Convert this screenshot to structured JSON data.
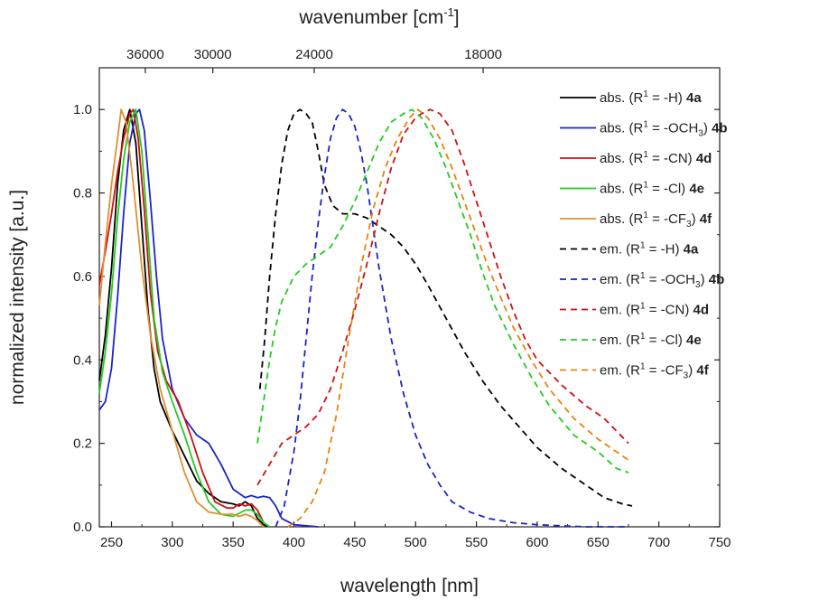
{
  "chart_data": {
    "type": "line",
    "xlabel": "wavelength [nm]",
    "ylabel": "normalized intensity [a.u.]",
    "top_xlabel": "wavenumber [cm",
    "top_xlabel_sup": "-1",
    "top_xlabel_end": "]",
    "xlim": [
      240,
      750
    ],
    "ylim": [
      0,
      1.1
    ],
    "x_ticks": [
      250,
      300,
      350,
      400,
      450,
      500,
      550,
      600,
      650,
      700,
      750
    ],
    "y_ticks": [
      "0.0",
      "0.2",
      "0.4",
      "0.6",
      "0.8",
      "1.0"
    ],
    "top_ticks": [
      {
        "label": "36000",
        "wavenumber": 36000
      },
      {
        "label": "30000",
        "wavenumber": 30000
      },
      {
        "label": "24000",
        "wavenumber": 24000
      },
      {
        "label": "18000",
        "wavenumber": 18000
      }
    ],
    "legend_position": "top-right",
    "series": [
      {
        "name": "abs. (R1 = -H) 4a",
        "legend": {
          "pre": "abs. (R",
          "sup": "1",
          "mid": " = -H)",
          "sub": "",
          "post": " ",
          "bold": "4a"
        },
        "color": "#000000",
        "dash": "solid",
        "points": [
          [
            240,
            0.35
          ],
          [
            245,
            0.46
          ],
          [
            250,
            0.62
          ],
          [
            255,
            0.82
          ],
          [
            260,
            0.95
          ],
          [
            265,
            1.0
          ],
          [
            270,
            0.92
          ],
          [
            275,
            0.72
          ],
          [
            280,
            0.52
          ],
          [
            285,
            0.38
          ],
          [
            290,
            0.3
          ],
          [
            300,
            0.23
          ],
          [
            310,
            0.17
          ],
          [
            320,
            0.11
          ],
          [
            330,
            0.08
          ],
          [
            340,
            0.06
          ],
          [
            350,
            0.055
          ],
          [
            355,
            0.05
          ],
          [
            360,
            0.06
          ],
          [
            365,
            0.05
          ],
          [
            370,
            0.02
          ],
          [
            375,
            0.005
          ],
          [
            380,
            0.0
          ]
        ]
      },
      {
        "name": "abs. (R1 = -OCH3) 4b",
        "legend": {
          "pre": "abs. (R",
          "sup": "1",
          "mid": " = -OCH",
          "sub": "3",
          "post": ") ",
          "bold": "4b"
        },
        "color": "#1a24c8",
        "dash": "solid",
        "points": [
          [
            240,
            0.28
          ],
          [
            245,
            0.3
          ],
          [
            250,
            0.38
          ],
          [
            255,
            0.55
          ],
          [
            260,
            0.75
          ],
          [
            265,
            0.92
          ],
          [
            270,
            0.99
          ],
          [
            273,
            1.0
          ],
          [
            277,
            0.95
          ],
          [
            282,
            0.78
          ],
          [
            287,
            0.6
          ],
          [
            292,
            0.45
          ],
          [
            300,
            0.33
          ],
          [
            310,
            0.26
          ],
          [
            320,
            0.22
          ],
          [
            330,
            0.2
          ],
          [
            340,
            0.15
          ],
          [
            350,
            0.09
          ],
          [
            360,
            0.07
          ],
          [
            365,
            0.075
          ],
          [
            370,
            0.07
          ],
          [
            375,
            0.073
          ],
          [
            380,
            0.07
          ],
          [
            385,
            0.05
          ],
          [
            390,
            0.02
          ],
          [
            400,
            0.005
          ],
          [
            420,
            0.0
          ]
        ]
      },
      {
        "name": "abs. (R1 = -CN) 4d",
        "legend": {
          "pre": "abs. (R",
          "sup": "1",
          "mid": " = -CN)",
          "sub": "",
          "post": " ",
          "bold": "4d"
        },
        "color": "#d01010",
        "dash": "solid",
        "points": [
          [
            240,
            0.58
          ],
          [
            245,
            0.66
          ],
          [
            250,
            0.75
          ],
          [
            255,
            0.85
          ],
          [
            260,
            0.93
          ],
          [
            265,
            0.99
          ],
          [
            268,
            1.0
          ],
          [
            272,
            0.93
          ],
          [
            277,
            0.76
          ],
          [
            282,
            0.56
          ],
          [
            288,
            0.42
          ],
          [
            295,
            0.35
          ],
          [
            305,
            0.3
          ],
          [
            315,
            0.22
          ],
          [
            325,
            0.13
          ],
          [
            335,
            0.06
          ],
          [
            345,
            0.045
          ],
          [
            350,
            0.045
          ],
          [
            355,
            0.055
          ],
          [
            360,
            0.05
          ],
          [
            365,
            0.055
          ],
          [
            370,
            0.04
          ],
          [
            375,
            0.01
          ],
          [
            380,
            0.0
          ]
        ]
      },
      {
        "name": "abs. (R1 = -Cl) 4e",
        "legend": {
          "pre": "abs. (R",
          "sup": "1",
          "mid": " = -Cl)",
          "sub": "",
          "post": " ",
          "bold": "4e"
        },
        "color": "#22cc22",
        "dash": "solid",
        "points": [
          [
            240,
            0.32
          ],
          [
            245,
            0.42
          ],
          [
            250,
            0.56
          ],
          [
            255,
            0.74
          ],
          [
            260,
            0.88
          ],
          [
            265,
            0.97
          ],
          [
            270,
            1.0
          ],
          [
            275,
            0.9
          ],
          [
            280,
            0.7
          ],
          [
            285,
            0.5
          ],
          [
            292,
            0.37
          ],
          [
            300,
            0.3
          ],
          [
            310,
            0.22
          ],
          [
            320,
            0.13
          ],
          [
            330,
            0.06
          ],
          [
            340,
            0.03
          ],
          [
            350,
            0.025
          ],
          [
            360,
            0.04
          ],
          [
            365,
            0.04
          ],
          [
            370,
            0.03
          ],
          [
            375,
            0.01
          ],
          [
            380,
            0.0
          ]
        ]
      },
      {
        "name": "abs. (R1 = -CF3) 4f",
        "legend": {
          "pre": "abs. (R",
          "sup": "1",
          "mid": " = -CF",
          "sub": "3",
          "post": ") ",
          "bold": "4f"
        },
        "color": "#e09030",
        "dash": "solid",
        "points": [
          [
            240,
            0.53
          ],
          [
            245,
            0.68
          ],
          [
            250,
            0.82
          ],
          [
            255,
            0.93
          ],
          [
            258,
            1.0
          ],
          [
            262,
            0.97
          ],
          [
            268,
            0.82
          ],
          [
            275,
            0.62
          ],
          [
            282,
            0.46
          ],
          [
            290,
            0.33
          ],
          [
            300,
            0.23
          ],
          [
            310,
            0.13
          ],
          [
            320,
            0.06
          ],
          [
            330,
            0.035
          ],
          [
            340,
            0.03
          ],
          [
            350,
            0.03
          ],
          [
            355,
            0.025
          ],
          [
            360,
            0.03
          ],
          [
            365,
            0.025
          ],
          [
            370,
            0.015
          ],
          [
            375,
            0.0
          ]
        ]
      },
      {
        "name": "em. (R1 = -H) 4a",
        "legend": {
          "pre": "em. (R",
          "sup": "1",
          "mid": " = -H)",
          "sub": "",
          "post": " ",
          "bold": "4a"
        },
        "color": "#000000",
        "dash": "dashed",
        "points": [
          [
            372,
            0.33
          ],
          [
            376,
            0.45
          ],
          [
            380,
            0.6
          ],
          [
            385,
            0.75
          ],
          [
            390,
            0.87
          ],
          [
            395,
            0.95
          ],
          [
            400,
            0.99
          ],
          [
            405,
            1.0
          ],
          [
            410,
            0.99
          ],
          [
            415,
            0.97
          ],
          [
            420,
            0.9
          ],
          [
            425,
            0.82
          ],
          [
            432,
            0.77
          ],
          [
            440,
            0.75
          ],
          [
            450,
            0.75
          ],
          [
            460,
            0.74
          ],
          [
            470,
            0.72
          ],
          [
            480,
            0.7
          ],
          [
            490,
            0.67
          ],
          [
            500,
            0.63
          ],
          [
            510,
            0.58
          ],
          [
            525,
            0.5
          ],
          [
            540,
            0.42
          ],
          [
            555,
            0.35
          ],
          [
            570,
            0.29
          ],
          [
            585,
            0.24
          ],
          [
            600,
            0.19
          ],
          [
            620,
            0.14
          ],
          [
            640,
            0.1
          ],
          [
            655,
            0.07
          ],
          [
            670,
            0.055
          ],
          [
            678,
            0.05
          ]
        ]
      },
      {
        "name": "em. (R1 = -OCH3) 4b",
        "legend": {
          "pre": "em. (R",
          "sup": "1",
          "mid": " = -OCH",
          "sub": "3",
          "post": ") ",
          "bold": "4b"
        },
        "color": "#1a24c8",
        "dash": "dashed",
        "points": [
          [
            385,
            0.0
          ],
          [
            392,
            0.05
          ],
          [
            400,
            0.18
          ],
          [
            405,
            0.3
          ],
          [
            410,
            0.45
          ],
          [
            415,
            0.6
          ],
          [
            420,
            0.73
          ],
          [
            425,
            0.84
          ],
          [
            430,
            0.93
          ],
          [
            435,
            0.98
          ],
          [
            440,
            1.0
          ],
          [
            445,
            0.99
          ],
          [
            450,
            0.96
          ],
          [
            455,
            0.9
          ],
          [
            460,
            0.82
          ],
          [
            465,
            0.72
          ],
          [
            470,
            0.62
          ],
          [
            480,
            0.45
          ],
          [
            490,
            0.32
          ],
          [
            500,
            0.22
          ],
          [
            510,
            0.15
          ],
          [
            520,
            0.1
          ],
          [
            530,
            0.06
          ],
          [
            545,
            0.035
          ],
          [
            560,
            0.02
          ],
          [
            580,
            0.01
          ],
          [
            600,
            0.005
          ],
          [
            640,
            0.0
          ],
          [
            675,
            0.0
          ]
        ]
      },
      {
        "name": "em. (R1 = -CN) 4d",
        "legend": {
          "pre": "em. (R",
          "sup": "1",
          "mid": " = -CN)",
          "sub": "",
          "post": " ",
          "bold": "4d"
        },
        "color": "#d01010",
        "dash": "dashed",
        "points": [
          [
            370,
            0.1
          ],
          [
            380,
            0.15
          ],
          [
            390,
            0.2
          ],
          [
            400,
            0.22
          ],
          [
            410,
            0.24
          ],
          [
            420,
            0.27
          ],
          [
            430,
            0.33
          ],
          [
            440,
            0.42
          ],
          [
            450,
            0.52
          ],
          [
            460,
            0.63
          ],
          [
            470,
            0.75
          ],
          [
            480,
            0.86
          ],
          [
            490,
            0.94
          ],
          [
            500,
            0.98
          ],
          [
            505,
            0.99
          ],
          [
            512,
            1.0
          ],
          [
            520,
            0.99
          ],
          [
            530,
            0.95
          ],
          [
            540,
            0.87
          ],
          [
            550,
            0.78
          ],
          [
            560,
            0.69
          ],
          [
            570,
            0.6
          ],
          [
            580,
            0.52
          ],
          [
            590,
            0.45
          ],
          [
            600,
            0.4
          ],
          [
            620,
            0.34
          ],
          [
            640,
            0.29
          ],
          [
            655,
            0.26
          ],
          [
            665,
            0.23
          ],
          [
            675,
            0.2
          ]
        ]
      },
      {
        "name": "em. (R1 = -Cl) 4e",
        "legend": {
          "pre": "em. (R",
          "sup": "1",
          "mid": " = -Cl)",
          "sub": "",
          "post": " ",
          "bold": "4e"
        },
        "color": "#22cc22",
        "dash": "dashed",
        "points": [
          [
            370,
            0.2
          ],
          [
            375,
            0.3
          ],
          [
            380,
            0.4
          ],
          [
            385,
            0.48
          ],
          [
            390,
            0.54
          ],
          [
            395,
            0.57
          ],
          [
            400,
            0.6
          ],
          [
            410,
            0.63
          ],
          [
            420,
            0.65
          ],
          [
            430,
            0.67
          ],
          [
            440,
            0.72
          ],
          [
            450,
            0.78
          ],
          [
            460,
            0.85
          ],
          [
            470,
            0.92
          ],
          [
            480,
            0.97
          ],
          [
            490,
            0.99
          ],
          [
            497,
            1.0
          ],
          [
            505,
            0.98
          ],
          [
            515,
            0.93
          ],
          [
            525,
            0.86
          ],
          [
            535,
            0.78
          ],
          [
            545,
            0.7
          ],
          [
            555,
            0.61
          ],
          [
            565,
            0.53
          ],
          [
            580,
            0.44
          ],
          [
            595,
            0.36
          ],
          [
            610,
            0.29
          ],
          [
            630,
            0.22
          ],
          [
            650,
            0.18
          ],
          [
            665,
            0.14
          ],
          [
            675,
            0.13
          ]
        ]
      },
      {
        "name": "em. (R1 = -CF3) 4f",
        "legend": {
          "pre": "em. (R",
          "sup": "1",
          "mid": " = -CF",
          "sub": "3",
          "post": ") ",
          "bold": "4f"
        },
        "color": "#e8820e",
        "dash": "dashed",
        "points": [
          [
            395,
            0.0
          ],
          [
            405,
            0.02
          ],
          [
            415,
            0.06
          ],
          [
            425,
            0.13
          ],
          [
            435,
            0.27
          ],
          [
            445,
            0.45
          ],
          [
            455,
            0.62
          ],
          [
            465,
            0.76
          ],
          [
            475,
            0.86
          ],
          [
            485,
            0.93
          ],
          [
            495,
            0.98
          ],
          [
            502,
            1.0
          ],
          [
            510,
            0.98
          ],
          [
            520,
            0.93
          ],
          [
            530,
            0.86
          ],
          [
            540,
            0.78
          ],
          [
            550,
            0.7
          ],
          [
            560,
            0.62
          ],
          [
            570,
            0.55
          ],
          [
            580,
            0.48
          ],
          [
            595,
            0.4
          ],
          [
            610,
            0.33
          ],
          [
            630,
            0.26
          ],
          [
            650,
            0.21
          ],
          [
            665,
            0.18
          ],
          [
            675,
            0.16
          ]
        ]
      }
    ]
  }
}
